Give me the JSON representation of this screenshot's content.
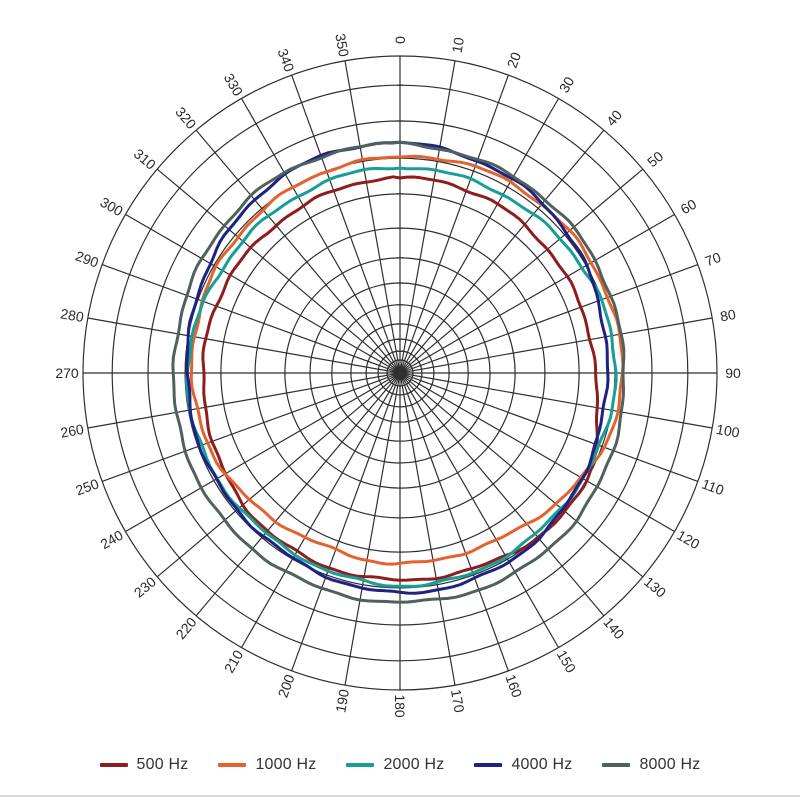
{
  "chart_data": {
    "type": "line",
    "coordinate_system": "polar",
    "title": "",
    "angle_unit": "degrees",
    "angle_tick_step_deg": 10,
    "angle_labels": [
      "0",
      "10",
      "20",
      "30",
      "40",
      "50",
      "60",
      "70",
      "80",
      "90",
      "100",
      "110",
      "120",
      "130",
      "140",
      "150",
      "160",
      "170",
      "180",
      "190",
      "200",
      "210",
      "220",
      "230",
      "240",
      "250",
      "260",
      "270",
      "280",
      "290",
      "300",
      "310",
      "320",
      "330",
      "340",
      "350"
    ],
    "angles_deg": [
      0,
      10,
      20,
      30,
      40,
      50,
      60,
      70,
      80,
      90,
      100,
      110,
      120,
      130,
      140,
      150,
      160,
      170,
      180,
      190,
      200,
      210,
      220,
      230,
      240,
      250,
      260,
      270,
      280,
      290,
      300,
      310,
      320,
      330,
      340,
      350
    ],
    "radial_axis": {
      "rings_normalized": [
        1.0,
        0.908,
        0.795,
        0.678,
        0.565,
        0.457,
        0.363,
        0.284,
        0.215,
        0.155,
        0.107,
        0.069,
        0.041,
        0.019
      ],
      "labels_visible": false,
      "note": "radial scale rings unlabeled; values below are radius as fraction of outer ring"
    },
    "grid": true,
    "legend_position": "bottom",
    "series": [
      {
        "name": "500 Hz",
        "color": "#8e1e1e",
        "values_normalized": [
          0.615,
          0.615,
          0.612,
          0.612,
          0.609,
          0.609,
          0.609,
          0.612,
          0.612,
          0.615,
          0.631,
          0.656,
          0.675,
          0.681,
          0.678,
          0.669,
          0.662,
          0.656,
          0.653,
          0.65,
          0.65,
          0.65,
          0.65,
          0.647,
          0.64,
          0.631,
          0.625,
          0.621,
          0.618,
          0.615,
          0.615,
          0.612,
          0.612,
          0.612,
          0.615,
          0.615
        ]
      },
      {
        "name": "1000 Hz",
        "color": "#e2632f",
        "values_normalized": [
          0.678,
          0.685,
          0.691,
          0.694,
          0.697,
          0.7,
          0.7,
          0.7,
          0.7,
          0.7,
          0.694,
          0.681,
          0.662,
          0.644,
          0.625,
          0.612,
          0.603,
          0.599,
          0.599,
          0.596,
          0.593,
          0.599,
          0.612,
          0.625,
          0.637,
          0.647,
          0.65,
          0.653,
          0.656,
          0.662,
          0.669,
          0.672,
          0.675,
          0.678,
          0.678,
          0.678
        ]
      },
      {
        "name": "2000 Hz",
        "color": "#179e96",
        "values_normalized": [
          0.647,
          0.647,
          0.65,
          0.653,
          0.656,
          0.662,
          0.666,
          0.672,
          0.675,
          0.678,
          0.675,
          0.672,
          0.669,
          0.666,
          0.666,
          0.666,
          0.669,
          0.669,
          0.669,
          0.666,
          0.666,
          0.662,
          0.662,
          0.662,
          0.666,
          0.666,
          0.669,
          0.669,
          0.666,
          0.659,
          0.653,
          0.65,
          0.647,
          0.644,
          0.644,
          0.647
        ]
      },
      {
        "name": "4000 Hz",
        "color": "#1c2382",
        "values_normalized": [
          0.726,
          0.722,
          0.716,
          0.71,
          0.7,
          0.688,
          0.675,
          0.662,
          0.656,
          0.653,
          0.656,
          0.659,
          0.666,
          0.672,
          0.678,
          0.685,
          0.688,
          0.691,
          0.694,
          0.691,
          0.685,
          0.678,
          0.672,
          0.669,
          0.669,
          0.669,
          0.669,
          0.672,
          0.678,
          0.688,
          0.694,
          0.703,
          0.713,
          0.719,
          0.726,
          0.726
        ]
      },
      {
        "name": "8000 Hz",
        "color": "#50605c",
        "values_normalized": [
          0.726,
          0.722,
          0.719,
          0.716,
          0.713,
          0.71,
          0.707,
          0.707,
          0.707,
          0.71,
          0.713,
          0.716,
          0.719,
          0.722,
          0.722,
          0.726,
          0.726,
          0.726,
          0.726,
          0.726,
          0.726,
          0.722,
          0.722,
          0.722,
          0.719,
          0.719,
          0.719,
          0.716,
          0.716,
          0.719,
          0.719,
          0.722,
          0.726,
          0.726,
          0.726,
          0.726
        ]
      }
    ]
  },
  "legend": {
    "items": [
      {
        "label": "500 Hz",
        "color": "#8e1e1e"
      },
      {
        "label": "1000 Hz",
        "color": "#e2632f"
      },
      {
        "label": "2000 Hz",
        "color": "#179e96"
      },
      {
        "label": "4000 Hz",
        "color": "#1c2382"
      },
      {
        "label": "8000 Hz",
        "color": "#50605c"
      }
    ]
  },
  "layout_colors": {
    "background": "#ffffff",
    "grid": "#2f2f2f",
    "angle_label": "#2a2a2a",
    "legend_text": "#333333",
    "bottom_rule": "#d9d9d9"
  }
}
